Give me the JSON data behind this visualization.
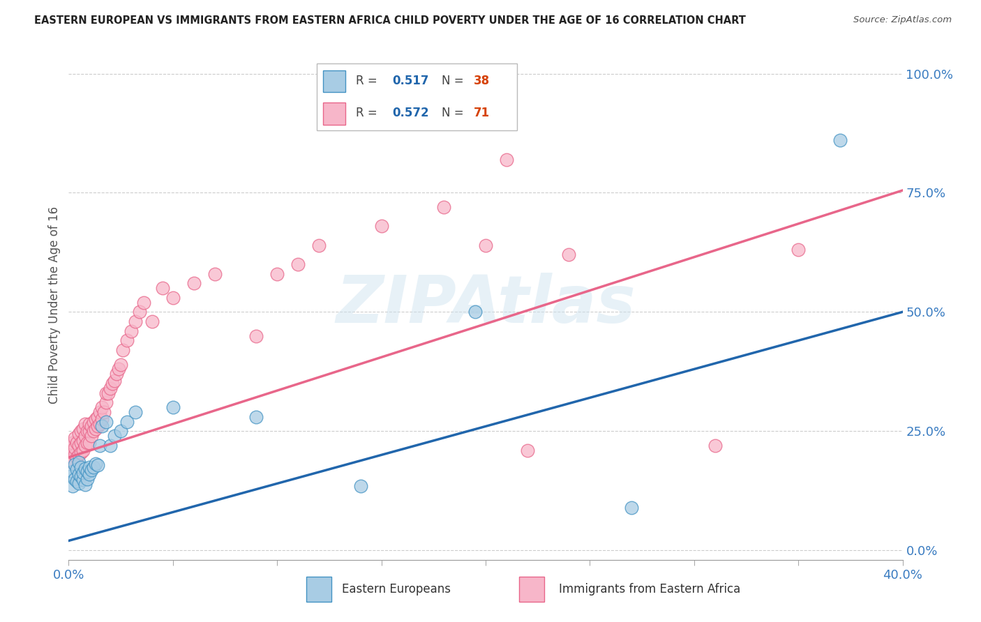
{
  "title": "EASTERN EUROPEAN VS IMMIGRANTS FROM EASTERN AFRICA CHILD POVERTY UNDER THE AGE OF 16 CORRELATION CHART",
  "source": "Source: ZipAtlas.com",
  "ylabel": "Child Poverty Under the Age of 16",
  "xmin": 0.0,
  "xmax": 0.4,
  "ymin": -0.02,
  "ymax": 1.05,
  "blue_R": 0.517,
  "blue_N": 38,
  "pink_R": 0.572,
  "pink_N": 71,
  "blue_color": "#a8cce4",
  "pink_color": "#f7b6c9",
  "blue_edge_color": "#4393c3",
  "pink_edge_color": "#e8668a",
  "blue_line_color": "#2166ac",
  "pink_line_color": "#e8668a",
  "legend_label_blue": "Eastern Europeans",
  "legend_label_pink": "Immigrants from Eastern Africa",
  "watermark": "ZIPAtlas",
  "blue_line_x0": 0.0,
  "blue_line_y0": 0.02,
  "blue_line_x1": 0.4,
  "blue_line_y1": 0.5,
  "pink_line_x0": 0.0,
  "pink_line_y0": 0.195,
  "pink_line_x1": 0.4,
  "pink_line_y1": 0.755,
  "blue_scatter_x": [
    0.001,
    0.002,
    0.002,
    0.003,
    0.003,
    0.004,
    0.004,
    0.005,
    0.005,
    0.005,
    0.006,
    0.006,
    0.007,
    0.007,
    0.008,
    0.008,
    0.009,
    0.009,
    0.01,
    0.01,
    0.011,
    0.012,
    0.013,
    0.014,
    0.015,
    0.016,
    0.018,
    0.02,
    0.022,
    0.025,
    0.028,
    0.032,
    0.05,
    0.09,
    0.14,
    0.195,
    0.27,
    0.37
  ],
  "blue_scatter_y": [
    0.155,
    0.135,
    0.165,
    0.15,
    0.18,
    0.145,
    0.17,
    0.14,
    0.16,
    0.185,
    0.155,
    0.175,
    0.148,
    0.162,
    0.138,
    0.172,
    0.15,
    0.165,
    0.16,
    0.175,
    0.168,
    0.175,
    0.182,
    0.178,
    0.22,
    0.26,
    0.27,
    0.22,
    0.24,
    0.25,
    0.27,
    0.29,
    0.3,
    0.28,
    0.135,
    0.5,
    0.09,
    0.86
  ],
  "pink_scatter_x": [
    0.001,
    0.001,
    0.002,
    0.002,
    0.003,
    0.003,
    0.003,
    0.004,
    0.004,
    0.005,
    0.005,
    0.005,
    0.006,
    0.006,
    0.006,
    0.007,
    0.007,
    0.007,
    0.008,
    0.008,
    0.008,
    0.009,
    0.009,
    0.01,
    0.01,
    0.01,
    0.011,
    0.011,
    0.012,
    0.012,
    0.013,
    0.013,
    0.014,
    0.014,
    0.015,
    0.015,
    0.016,
    0.016,
    0.017,
    0.018,
    0.018,
    0.019,
    0.02,
    0.021,
    0.022,
    0.023,
    0.024,
    0.025,
    0.026,
    0.028,
    0.03,
    0.032,
    0.034,
    0.036,
    0.04,
    0.045,
    0.05,
    0.06,
    0.07,
    0.09,
    0.1,
    0.11,
    0.12,
    0.15,
    0.18,
    0.2,
    0.21,
    0.22,
    0.24,
    0.31,
    0.35
  ],
  "pink_scatter_y": [
    0.195,
    0.215,
    0.185,
    0.225,
    0.2,
    0.215,
    0.235,
    0.195,
    0.225,
    0.2,
    0.22,
    0.245,
    0.205,
    0.225,
    0.25,
    0.21,
    0.23,
    0.255,
    0.22,
    0.24,
    0.265,
    0.225,
    0.25,
    0.225,
    0.25,
    0.265,
    0.24,
    0.26,
    0.25,
    0.27,
    0.255,
    0.275,
    0.26,
    0.28,
    0.265,
    0.29,
    0.275,
    0.3,
    0.29,
    0.31,
    0.33,
    0.33,
    0.34,
    0.35,
    0.355,
    0.37,
    0.38,
    0.39,
    0.42,
    0.44,
    0.46,
    0.48,
    0.5,
    0.52,
    0.48,
    0.55,
    0.53,
    0.56,
    0.58,
    0.45,
    0.58,
    0.6,
    0.64,
    0.68,
    0.72,
    0.64,
    0.82,
    0.21,
    0.62,
    0.22,
    0.63
  ]
}
